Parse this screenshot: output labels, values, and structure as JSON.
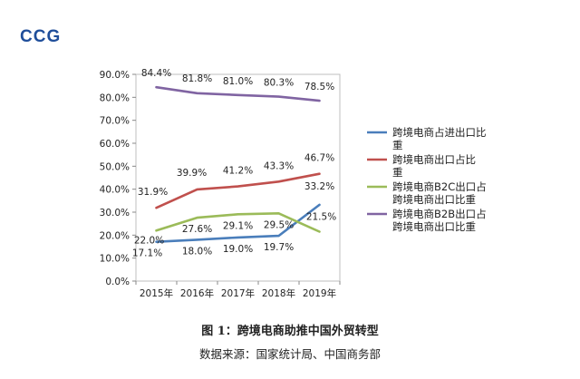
{
  "logo": "CCG",
  "caption": "图 1：跨境电商助推中国外贸转型",
  "source": "数据来源：国家统计局、中国商务部",
  "chart_data": {
    "type": "line",
    "x": [
      "2015年",
      "2016年",
      "2017年",
      "2018年",
      "2019年"
    ],
    "ylim": [
      0,
      90
    ],
    "yticks": [
      0,
      10,
      20,
      30,
      40,
      50,
      60,
      70,
      80,
      90
    ],
    "ytick_labels": [
      "0.0%",
      "10.0%",
      "20.0%",
      "30.0%",
      "40.0%",
      "50.0%",
      "60.0%",
      "70.0%",
      "80.0%",
      "90.0%"
    ],
    "legend_position": "right",
    "series": [
      {
        "name": "跨境电商占进出口比重",
        "color": "#4a7ebb",
        "values": [
          17.1,
          18.0,
          19.0,
          19.7,
          33.2
        ],
        "labels": [
          "17.1%",
          "18.0%",
          "19.0%",
          "19.7%",
          "33.2%"
        ]
      },
      {
        "name": "跨境电商出口占比重",
        "color": "#c0504d",
        "values": [
          31.9,
          39.9,
          41.2,
          43.3,
          46.7
        ],
        "labels": [
          "31.9%",
          "39.9%",
          "41.2%",
          "43.3%",
          "46.7%"
        ]
      },
      {
        "name": "跨境电商B2C出口占跨境电商出口比重",
        "color": "#9bbb59",
        "values": [
          22.0,
          27.6,
          29.1,
          29.5,
          21.5
        ],
        "labels": [
          "22.0%",
          "27.6%",
          "29.1%",
          "29.5%",
          "21.5%"
        ]
      },
      {
        "name": "跨境电商B2B出口占跨境电商出口比重",
        "color": "#8064a2",
        "values": [
          84.4,
          81.8,
          81.0,
          80.3,
          78.5
        ],
        "labels": [
          "84.4%",
          "81.8%",
          "81.0%",
          "80.3%",
          "78.5%"
        ]
      }
    ],
    "legend_lines": [
      [
        "跨境电商占进出口比",
        "重"
      ],
      [
        "跨境电商出口占比",
        "重"
      ],
      [
        "跨境电商B2C出口占",
        "跨境电商出口比重"
      ],
      [
        "跨境电商B2B出口占",
        "跨境电商出口比重"
      ]
    ]
  }
}
